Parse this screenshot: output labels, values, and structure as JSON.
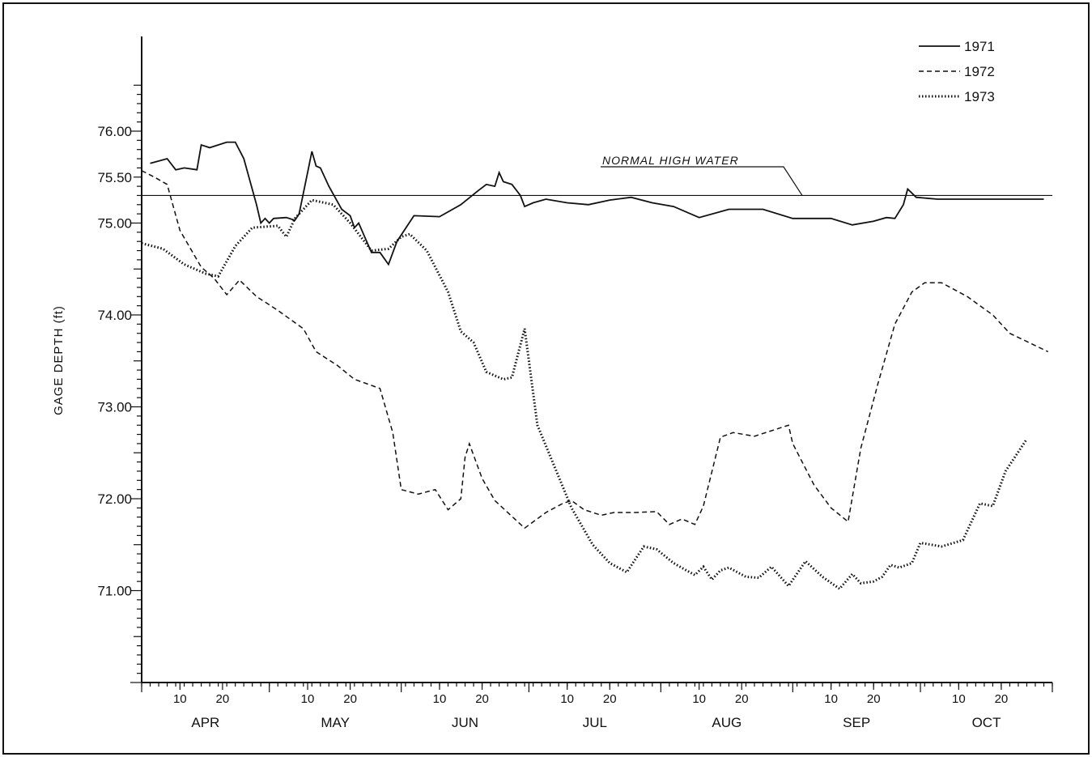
{
  "chart_data": {
    "type": "line",
    "ylabel": "GAGE DEPTH (ft)",
    "ylim": [
      70.0,
      76.5
    ],
    "y_ticks": [
      "71.00",
      "72.00",
      "73.00",
      "74.00",
      "75.00",
      "75.50",
      "76.00"
    ],
    "x_range": [
      "Apr 1",
      "Oct 31"
    ],
    "months": [
      "APR",
      "MAY",
      "JUN",
      "JUL",
      "AUG",
      "SEP",
      "OCT"
    ],
    "day_tick_labels": [
      "10",
      "20"
    ],
    "legend_position": "top-right",
    "reference_line": {
      "label": "NORMAL HIGH WATER",
      "y": 75.3
    },
    "series": [
      {
        "name": "1971",
        "style": "solid",
        "points": [
          [
            "Apr 3",
            75.65
          ],
          [
            "Apr 7",
            75.7
          ],
          [
            "Apr 9",
            75.58
          ],
          [
            "Apr 11",
            75.6
          ],
          [
            "Apr 14",
            75.58
          ],
          [
            "Apr 15",
            75.85
          ],
          [
            "Apr 17",
            75.82
          ],
          [
            "Apr 21",
            75.88
          ],
          [
            "Apr 23",
            75.88
          ],
          [
            "Apr 25",
            75.7
          ],
          [
            "Apr 28",
            75.2
          ],
          [
            "Apr 29",
            75.0
          ],
          [
            "Apr 30",
            75.05
          ],
          [
            "May 1",
            75.0
          ],
          [
            "May 2",
            75.05
          ],
          [
            "May 5",
            75.06
          ],
          [
            "May 7",
            75.03
          ],
          [
            "May 8",
            75.1
          ],
          [
            "May 10",
            75.55
          ],
          [
            "May 11",
            75.78
          ],
          [
            "May 12",
            75.62
          ],
          [
            "May 13",
            75.6
          ],
          [
            "May 15",
            75.4
          ],
          [
            "May 18",
            75.15
          ],
          [
            "May 20",
            75.08
          ],
          [
            "May 21",
            74.95
          ],
          [
            "May 22",
            75.0
          ],
          [
            "May 25",
            74.68
          ],
          [
            "May 27",
            74.68
          ],
          [
            "May 29",
            74.55
          ],
          [
            "May 31",
            74.8
          ],
          [
            "Jun 4",
            75.08
          ],
          [
            "Jun 10",
            75.07
          ],
          [
            "Jun 15",
            75.2
          ],
          [
            "Jun 19",
            75.35
          ],
          [
            "Jun 21",
            75.42
          ],
          [
            "Jun 23",
            75.4
          ],
          [
            "Jun 24",
            75.55
          ],
          [
            "Jun 25",
            75.45
          ],
          [
            "Jun 27",
            75.42
          ],
          [
            "Jun 29",
            75.3
          ],
          [
            "Jun 30",
            75.18
          ],
          [
            "Jul 2",
            75.22
          ],
          [
            "Jul 5",
            75.26
          ],
          [
            "Jul 10",
            75.22
          ],
          [
            "Jul 15",
            75.2
          ],
          [
            "Jul 20",
            75.25
          ],
          [
            "Jul 25",
            75.28
          ],
          [
            "Jul 30",
            75.22
          ],
          [
            "Aug 4",
            75.18
          ],
          [
            "Aug 10",
            75.06
          ],
          [
            "Aug 17",
            75.15
          ],
          [
            "Aug 25",
            75.15
          ],
          [
            "Sep 1",
            75.05
          ],
          [
            "Sep 10",
            75.05
          ],
          [
            "Sep 15",
            74.98
          ],
          [
            "Sep 20",
            75.02
          ],
          [
            "Sep 23",
            75.06
          ],
          [
            "Sep 25",
            75.05
          ],
          [
            "Sep 27",
            75.2
          ],
          [
            "Sep 28",
            75.37
          ],
          [
            "Sep 30",
            75.28
          ],
          [
            "Oct 5",
            75.26
          ],
          [
            "Oct 15",
            75.26
          ],
          [
            "Oct 30",
            75.26
          ]
        ]
      },
      {
        "name": "1972",
        "style": "dashed",
        "points": [
          [
            "Apr 1",
            75.57
          ],
          [
            "Apr 4",
            75.5
          ],
          [
            "Apr 7",
            75.42
          ],
          [
            "Apr 10",
            74.92
          ],
          [
            "Apr 15",
            74.52
          ],
          [
            "Apr 18",
            74.4
          ],
          [
            "Apr 21",
            74.22
          ],
          [
            "Apr 24",
            74.38
          ],
          [
            "Apr 28",
            74.2
          ],
          [
            "May 3",
            74.05
          ],
          [
            "May 6",
            73.95
          ],
          [
            "May 9",
            73.85
          ],
          [
            "May 12",
            73.6
          ],
          [
            "May 17",
            73.45
          ],
          [
            "May 21",
            73.3
          ],
          [
            "May 27",
            73.2
          ],
          [
            "May 30",
            72.72
          ],
          [
            "Jun 1",
            72.1
          ],
          [
            "Jun 5",
            72.05
          ],
          [
            "Jun 9",
            72.1
          ],
          [
            "Jun 12",
            71.88
          ],
          [
            "Jun 15",
            72.0
          ],
          [
            "Jun 16",
            72.45
          ],
          [
            "Jun 17",
            72.6
          ],
          [
            "Jun 20",
            72.22
          ],
          [
            "Jun 23",
            71.98
          ],
          [
            "Jun 30",
            71.68
          ],
          [
            "Jul 5",
            71.85
          ],
          [
            "Jul 9",
            71.95
          ],
          [
            "Jul 11",
            71.98
          ],
          [
            "Jul 14",
            71.88
          ],
          [
            "Jul 18",
            71.82
          ],
          [
            "Jul 21",
            71.85
          ],
          [
            "Jul 26",
            71.85
          ],
          [
            "Jul 31",
            71.86
          ],
          [
            "Aug 3",
            71.72
          ],
          [
            "Aug 6",
            71.78
          ],
          [
            "Aug 9",
            71.72
          ],
          [
            "Aug 11",
            71.92
          ],
          [
            "Aug 15",
            72.67
          ],
          [
            "Aug 18",
            72.72
          ],
          [
            "Aug 23",
            72.68
          ],
          [
            "Aug 31",
            72.8
          ],
          [
            "Sep 1",
            72.6
          ],
          [
            "Sep 6",
            72.15
          ],
          [
            "Sep 10",
            71.9
          ],
          [
            "Sep 14",
            71.75
          ],
          [
            "Sep 17",
            72.55
          ],
          [
            "Sep 21",
            73.25
          ],
          [
            "Sep 25",
            73.9
          ],
          [
            "Sep 29",
            74.25
          ],
          [
            "Oct 2",
            74.35
          ],
          [
            "Oct 6",
            74.35
          ],
          [
            "Oct 12",
            74.2
          ],
          [
            "Oct 18",
            74.0
          ],
          [
            "Oct 22",
            73.8
          ],
          [
            "Oct 31",
            73.6
          ]
        ]
      },
      {
        "name": "1973",
        "style": "dotted",
        "points": [
          [
            "Apr 1",
            74.78
          ],
          [
            "Apr 6",
            74.72
          ],
          [
            "Apr 11",
            74.55
          ],
          [
            "Apr 16",
            74.45
          ],
          [
            "Apr 19",
            74.42
          ],
          [
            "Apr 23",
            74.75
          ],
          [
            "Apr 27",
            74.95
          ],
          [
            "May 3",
            74.97
          ],
          [
            "May 5",
            74.85
          ],
          [
            "May 7",
            75.05
          ],
          [
            "May 11",
            75.25
          ],
          [
            "May 16",
            75.2
          ],
          [
            "May 20",
            75.0
          ],
          [
            "May 25",
            74.7
          ],
          [
            "May 29",
            74.72
          ],
          [
            "Jun 1",
            74.85
          ],
          [
            "Jun 3",
            74.88
          ],
          [
            "Jun 7",
            74.7
          ],
          [
            "Jun 12",
            74.25
          ],
          [
            "Jun 15",
            73.82
          ],
          [
            "Jun 18",
            73.7
          ],
          [
            "Jun 21",
            73.38
          ],
          [
            "Jun 25",
            73.3
          ],
          [
            "Jun 27",
            73.32
          ],
          [
            "Jun 30",
            73.85
          ],
          [
            "Jul 3",
            72.8
          ],
          [
            "Jul 11",
            71.9
          ],
          [
            "Jul 16",
            71.5
          ],
          [
            "Jul 20",
            71.3
          ],
          [
            "Jul 24",
            71.2
          ],
          [
            "Jul 28",
            71.48
          ],
          [
            "Jul 31",
            71.45
          ],
          [
            "Aug 4",
            71.3
          ],
          [
            "Aug 7",
            71.22
          ],
          [
            "Aug 9",
            71.17
          ],
          [
            "Aug 11",
            71.26
          ],
          [
            "Aug 13",
            71.12
          ],
          [
            "Aug 15",
            71.22
          ],
          [
            "Aug 17",
            71.25
          ],
          [
            "Aug 21",
            71.15
          ],
          [
            "Aug 24",
            71.14
          ],
          [
            "Aug 27",
            71.26
          ],
          [
            "Aug 31",
            71.05
          ],
          [
            "Sep 4",
            71.32
          ],
          [
            "Sep 8",
            71.15
          ],
          [
            "Sep 12",
            71.02
          ],
          [
            "Sep 15",
            71.18
          ],
          [
            "Sep 17",
            71.08
          ],
          [
            "Sep 20",
            71.1
          ],
          [
            "Sep 22",
            71.15
          ],
          [
            "Sep 24",
            71.28
          ],
          [
            "Sep 26",
            71.25
          ],
          [
            "Sep 29",
            71.3
          ],
          [
            "Oct 1",
            71.52
          ],
          [
            "Oct 6",
            71.48
          ],
          [
            "Oct 11",
            71.55
          ],
          [
            "Oct 15",
            71.95
          ],
          [
            "Oct 18",
            71.92
          ],
          [
            "Oct 21",
            72.3
          ],
          [
            "Oct 26",
            72.65
          ]
        ]
      }
    ]
  }
}
